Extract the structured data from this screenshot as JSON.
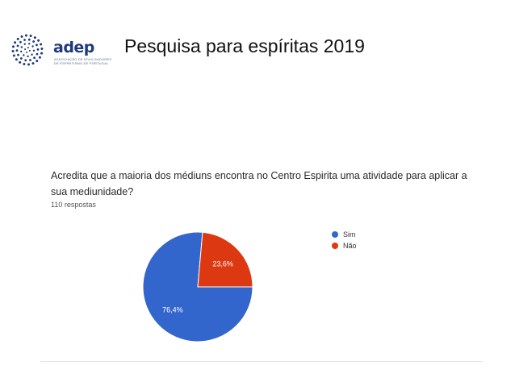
{
  "header": {
    "logo_word": "adep",
    "logo_sub_line1": "ASSOCIAÇÃO DE DIVULGADORES",
    "logo_sub_line2": "DE ESPIRITISMO DE PORTUGAL",
    "title": "Pesquisa para espíritas  2019"
  },
  "survey": {
    "question": "Acredita que a maioria dos médiuns encontra no Centro Espirita uma atividade para aplicar a sua mediunidade?",
    "responses": "110 respostas"
  },
  "colors": {
    "sim": "#3366cc",
    "nao": "#dc3912",
    "logo_blue": "#1f3a7a"
  },
  "chart_data": {
    "type": "pie",
    "categories": [
      "Sim",
      "Não"
    ],
    "values": [
      76.4,
      23.6
    ],
    "labels": [
      "76,4%",
      "23,6%"
    ],
    "colors": [
      "#3366cc",
      "#dc3912"
    ],
    "legend_position": "right"
  }
}
